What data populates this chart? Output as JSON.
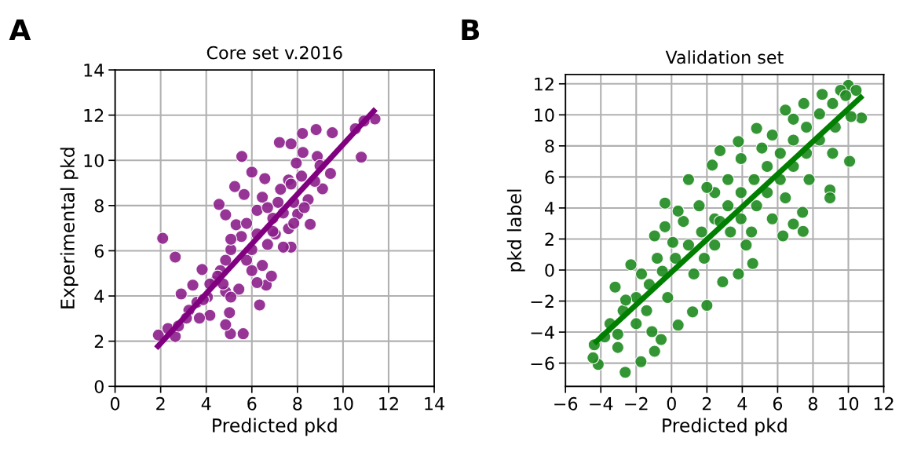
{
  "chart_data": [
    {
      "type": "scatter",
      "title": "Core set v.2016",
      "xlabel": "Predicted pkd",
      "ylabel": "Experimental pkd",
      "annotations": [
        "A"
      ],
      "xlim": [
        0,
        14
      ],
      "ylim": [
        0,
        14
      ],
      "xticks": [
        0,
        2,
        4,
        6,
        8,
        10,
        12,
        14
      ],
      "yticks": [
        0,
        2,
        4,
        6,
        8,
        10,
        12,
        14
      ],
      "grid": true,
      "series": [
        {
          "marker": "circle",
          "color": "#8b1f8b",
          "x": [
            2.09,
            2.64,
            5.06,
            5.62,
            6.34,
            5.56,
            6.0,
            7.21,
            7.72,
            8.22,
            8.82,
            9.53,
            10.8,
            11.4,
            10.92,
            10.54,
            9.45,
            9.1,
            8.56,
            4.56,
            4.85,
            5.25,
            1.9,
            2.32,
            2.64,
            2.9,
            3.41,
            3.82,
            4.16,
            4.85,
            5.02,
            6.63,
            6.23,
            6.86,
            7.72,
            7.38,
            8.01,
            8.47,
            8.87,
            8.24,
            7.95,
            8.18,
            8.76,
            7.61,
            6.57,
            5.66,
            5.31,
            6.46,
            7.15,
            6.92,
            6.23,
            5.54,
            5.08,
            4.85,
            4.62,
            4.39,
            5.77,
            6.46,
            5.43,
            4.85,
            3.59,
            3.24,
            3.7,
            7.03,
            7.61,
            6.69,
            6.0,
            5.77,
            7.26,
            7.84,
            8.3,
            6.23,
            6.69,
            7.38,
            7.72,
            5.08,
            4.5,
            4.16,
            4.74,
            4.05,
            2.78,
            3.13,
            3.87,
            5.08,
            6.0,
            6.92,
            7.84,
            8.99
          ],
          "values": [
            6.55,
            5.72,
            2.33,
            2.33,
            3.6,
            10.17,
            9.48,
            10.79,
            10.73,
            11.19,
            11.36,
            11.22,
            10.14,
            11.83,
            11.74,
            11.4,
            9.42,
            8.74,
            7.17,
            8.05,
            7.59,
            8.84,
            2.27,
            2.56,
            2.21,
            4.09,
            4.48,
            5.17,
            3.14,
            2.73,
            3.26,
            4.48,
            4.59,
            4.88,
            6.16,
            6.16,
            7.62,
            8.26,
            10.17,
            10.35,
            9.88,
            9.3,
            9.07,
            9.13,
            9.19,
            8.49,
            7.15,
            8.37,
            8.14,
            7.44,
            6.74,
            6.63,
            6.05,
            5.58,
            5.12,
            4.65,
            5.58,
            5.35,
            4.3,
            4.19,
            3.72,
            3.37,
            3.02,
            6.74,
            6.98,
            6.28,
            6.05,
            7.21,
            8.72,
            8.14,
            7.91,
            7.79,
            7.91,
            7.67,
            8.95,
            6.51,
            4.88,
            4.53,
            4.53,
            3.95,
            2.67,
            3.02,
            3.84,
            3.95,
            5.12,
            6.86,
            7.21,
            9.77
          ]
        },
        {
          "type": "line",
          "marker": "none",
          "color": "#800080",
          "x": [
            1.8,
            11.43
          ],
          "values": [
            1.69,
            12.27
          ]
        }
      ]
    },
    {
      "type": "scatter",
      "title": "Validation set",
      "xlabel": "Predicted pkd",
      "ylabel": "pkd label",
      "annotations": [
        "B"
      ],
      "xlim": [
        -6,
        12
      ],
      "ylim": [
        -7.5,
        12.6
      ],
      "xticks": [
        -6,
        -4,
        -2,
        0,
        2,
        4,
        6,
        8,
        10,
        12
      ],
      "yticks": [
        -6,
        -4,
        -2,
        0,
        2,
        4,
        6,
        8,
        10,
        12
      ],
      "grid": true,
      "series": [
        {
          "marker": "circle",
          "color": "#1e8a1e",
          "x": [
            10.0,
            10.44,
            10.74,
            10.07,
            8.96,
            8.96,
            7.41,
            7.44,
            6.89,
            6.3,
            4.59,
            3.78,
            2.89,
            2.0,
            1.19,
            0.37,
            -0.59,
            -0.96,
            -1.73,
            -2.62,
            -4.15,
            -4.37,
            -4.44,
            -3.19,
            -2.3,
            -0.96,
            -0.37,
            0.96,
            2.3,
            2.74,
            3.78,
            4.81,
            6.44,
            7.48,
            8.52,
            9.56,
            -3.48,
            -2.74,
            -2.0,
            -1.26,
            -0.52,
            0.22,
            0.96,
            1.7,
            2.44,
            3.19,
            3.93,
            4.67,
            5.41,
            6.15,
            6.89,
            7.63,
            8.37,
            9.11,
            9.85,
            -3.78,
            -3.04,
            -2.59,
            -1.7,
            -1.41,
            -0.22,
            0.07,
            0.67,
            1.26,
            1.85,
            2.44,
            1.56,
            2.44,
            3.19,
            3.33,
            3.93,
            4.22,
            4.81,
            5.41,
            5.7,
            3.93,
            5.11,
            6.15,
            6.89,
            7.78,
            7.63,
            8.37,
            9.11,
            9.26,
            10.15,
            6.89,
            5.7,
            -0.81,
            0.37,
            -0.37,
            -2.0,
            -3.04,
            -1.11,
            2.74,
            2.0,
            4.52,
            6.44
          ],
          "values": [
            11.9,
            11.58,
            9.8,
            7.01,
            5.16,
            4.65,
            3.72,
            2.49,
            2.96,
            2.2,
            0.42,
            -0.25,
            -0.76,
            -2.28,
            -2.7,
            -3.55,
            -4.48,
            -5.24,
            -5.91,
            -6.59,
            -6.08,
            -4.82,
            -5.66,
            -1.1,
            0.34,
            2.2,
            4.31,
            5.83,
            6.76,
            7.69,
            8.28,
            9.13,
            10.31,
            10.73,
            11.32,
            11.58,
            -3.46,
            -2.62,
            -1.77,
            -0.93,
            -0.08,
            0.76,
            1.61,
            2.45,
            3.3,
            4.14,
            4.99,
            5.83,
            6.68,
            7.52,
            8.37,
            9.21,
            10.06,
            10.73,
            11.24,
            -4.31,
            -4.14,
            -1.94,
            -0.25,
            -2.62,
            -1.77,
            1.78,
            3.13,
            -0.25,
            0.76,
            1.61,
            4.14,
            4.99,
            5.83,
            2.45,
            3.3,
            1.61,
            4.14,
            4.99,
            3.3,
            7.18,
            7.86,
            5.83,
            6.68,
            5.83,
            7.52,
            8.37,
            7.52,
            9.21,
            9.89,
            9.72,
            8.7,
            0.76,
            3.8,
            2.79,
            -3.46,
            -4.99,
            -3.97,
            3.13,
            5.32,
            2.45,
            4.65
          ]
        },
        {
          "type": "line",
          "marker": "none",
          "color": "#007f00",
          "x": [
            -4.37,
            10.81
          ],
          "values": [
            -4.73,
            11.24
          ]
        }
      ]
    }
  ]
}
